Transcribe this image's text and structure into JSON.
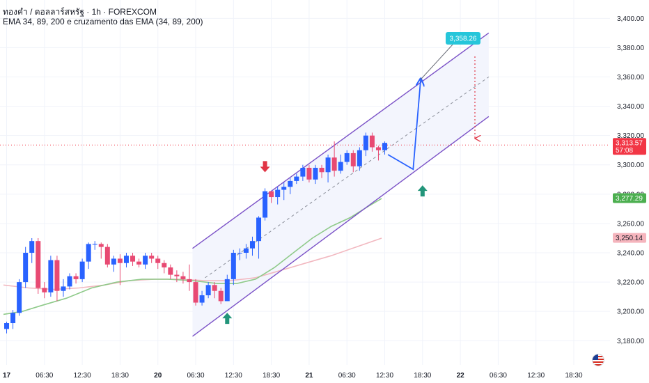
{
  "header": {
    "symbol_line": "ทองคำ / ดอลลาร์สหรัฐ · 1h · FOREXCOM",
    "indicator_line": "EMA 34, 89, 200 e cruzamento das EMA (34, 89, 200)"
  },
  "price_tags": {
    "current": "3,313.57",
    "countdown": "57:08",
    "ema_fast": "3,277.29",
    "ema_slow": "3,250.14",
    "target": "3,358.26"
  },
  "colors": {
    "up": "#2962ff",
    "down": "#e84a73",
    "channel": "#7b52c7",
    "ema_fast": "#8fca8a",
    "ema_slow": "#f2b8c0",
    "projection": "#2962ff",
    "target_box": "#26c6da",
    "down_arrow": "#e03545",
    "up_arrow": "#22957a",
    "ema_fast_tag": "#4caf50",
    "ema_slow_tag": "#f5b5bd"
  },
  "chart_data": {
    "type": "candlestick",
    "ylim": [
      3173,
      3403
    ],
    "y_ticks": [
      3180,
      3200,
      3220,
      3240,
      3260,
      3280,
      3300,
      3320,
      3340,
      3360,
      3380,
      3400
    ],
    "y_tick_labels": [
      "3,180.00",
      "3,200.00",
      "3,220.00",
      "3,240.00",
      "3,260.00",
      "3,280.00",
      "3,300.00",
      "3,320.00",
      "3,340.00",
      "3,360.00",
      "3,380.00",
      "3,400.00"
    ],
    "x_ticks": [
      {
        "label": "17",
        "bar": 0.5,
        "day": true
      },
      {
        "label": "06:30",
        "bar": 6.5,
        "day": false
      },
      {
        "label": "12:30",
        "bar": 12.5,
        "day": false
      },
      {
        "label": "18:30",
        "bar": 18.5,
        "day": false
      },
      {
        "label": "20",
        "bar": 24.5,
        "day": true
      },
      {
        "label": "06:30",
        "bar": 30.5,
        "day": false
      },
      {
        "label": "12:30",
        "bar": 36.5,
        "day": false
      },
      {
        "label": "18:30",
        "bar": 42.5,
        "day": false
      },
      {
        "label": "21",
        "bar": 48.5,
        "day": true
      },
      {
        "label": "06:30",
        "bar": 54.5,
        "day": false
      },
      {
        "label": "12:30",
        "bar": 60.5,
        "day": false
      },
      {
        "label": "18:30",
        "bar": 66.5,
        "day": false
      },
      {
        "label": "22",
        "bar": 72.5,
        "day": true
      },
      {
        "label": "06:30",
        "bar": 78.5,
        "day": false
      },
      {
        "label": "12:30",
        "bar": 84.5,
        "day": false
      },
      {
        "label": "18:30",
        "bar": 90.5,
        "day": false
      }
    ],
    "candles": [
      [
        3188,
        3192,
        3185,
        3193
      ],
      [
        3192,
        3199,
        3188,
        3201
      ],
      [
        3199,
        3220,
        3197,
        3222
      ],
      [
        3220,
        3240,
        3216,
        3244
      ],
      [
        3240,
        3248,
        3233,
        3250
      ],
      [
        3248,
        3216,
        3212,
        3250
      ],
      [
        3216,
        3213,
        3209,
        3220
      ],
      [
        3213,
        3235,
        3210,
        3238
      ],
      [
        3235,
        3214,
        3207,
        3238
      ],
      [
        3214,
        3217,
        3210,
        3222
      ],
      [
        3217,
        3224,
        3215,
        3226
      ],
      [
        3224,
        3222,
        3219,
        3226
      ],
      [
        3222,
        3234,
        3220,
        3236
      ],
      [
        3234,
        3246,
        3229,
        3247
      ],
      [
        3246,
        3246,
        3242,
        3248
      ],
      [
        3246,
        3244,
        3236,
        3247
      ],
      [
        3244,
        3232,
        3230,
        3246
      ],
      [
        3232,
        3236,
        3227,
        3238
      ],
      [
        3236,
        3233,
        3218,
        3239
      ],
      [
        3233,
        3238,
        3230,
        3240
      ],
      [
        3238,
        3234,
        3231,
        3240
      ],
      [
        3234,
        3232,
        3230,
        3236
      ],
      [
        3232,
        3238,
        3229,
        3240
      ],
      [
        3238,
        3236,
        3233,
        3240
      ],
      [
        3236,
        3233,
        3229,
        3238
      ],
      [
        3233,
        3230,
        3226,
        3235
      ],
      [
        3230,
        3225,
        3222,
        3232
      ],
      [
        3225,
        3224,
        3220,
        3228
      ],
      [
        3224,
        3222,
        3219,
        3227
      ],
      [
        3222,
        3220,
        3214,
        3232
      ],
      [
        3220,
        3206,
        3204,
        3222
      ],
      [
        3206,
        3211,
        3204,
        3214
      ],
      [
        3211,
        3218,
        3209,
        3220
      ],
      [
        3218,
        3214,
        3209,
        3220
      ],
      [
        3214,
        3207,
        3205,
        3216
      ],
      [
        3207,
        3222,
        3207,
        3225
      ],
      [
        3222,
        3240,
        3218,
        3242
      ],
      [
        3240,
        3240,
        3235,
        3243
      ],
      [
        3240,
        3243,
        3236,
        3246
      ],
      [
        3243,
        3248,
        3238,
        3251
      ],
      [
        3248,
        3264,
        3236,
        3265
      ],
      [
        3264,
        3282,
        3262,
        3284
      ],
      [
        3282,
        3278,
        3274,
        3281
      ],
      [
        3278,
        3283,
        3273,
        3285
      ],
      [
        3283,
        3285,
        3276,
        3288
      ],
      [
        3285,
        3289,
        3280,
        3291
      ],
      [
        3289,
        3292,
        3287,
        3294
      ],
      [
        3292,
        3298,
        3289,
        3300
      ],
      [
        3298,
        3290,
        3288,
        3300
      ],
      [
        3290,
        3298,
        3287,
        3300
      ],
      [
        3298,
        3295,
        3291,
        3300
      ],
      [
        3295,
        3305,
        3288,
        3307
      ],
      [
        3305,
        3296,
        3292,
        3316
      ],
      [
        3296,
        3302,
        3294,
        3307
      ],
      [
        3302,
        3308,
        3300,
        3310
      ],
      [
        3308,
        3299,
        3295,
        3310
      ],
      [
        3299,
        3310,
        3296,
        3312
      ],
      [
        3310,
        3320,
        3306,
        3322
      ],
      [
        3320,
        3312,
        3309,
        3322
      ],
      [
        3312,
        3310,
        3303,
        3313
      ],
      [
        3310,
        3315,
        3307,
        3316
      ]
    ],
    "ema_fast": [
      [
        0,
        3198
      ],
      [
        3,
        3200
      ],
      [
        6,
        3204
      ],
      [
        10,
        3209
      ],
      [
        14,
        3216
      ],
      [
        18,
        3220
      ],
      [
        22,
        3222
      ],
      [
        26,
        3222
      ],
      [
        30,
        3221
      ],
      [
        34,
        3219
      ],
      [
        37,
        3219
      ],
      [
        40,
        3222
      ],
      [
        43,
        3230
      ],
      [
        46,
        3240
      ],
      [
        49,
        3250
      ],
      [
        52,
        3258
      ],
      [
        55,
        3264
      ],
      [
        58,
        3272
      ],
      [
        60,
        3277
      ]
    ],
    "ema_slow": [
      [
        0,
        3218
      ],
      [
        4,
        3216
      ],
      [
        8,
        3215
      ],
      [
        12,
        3216
      ],
      [
        16,
        3218
      ],
      [
        20,
        3221
      ],
      [
        24,
        3222
      ],
      [
        28,
        3222
      ],
      [
        32,
        3221
      ],
      [
        36,
        3221
      ],
      [
        40,
        3223
      ],
      [
        44,
        3228
      ],
      [
        48,
        3233
      ],
      [
        52,
        3238
      ],
      [
        56,
        3244
      ],
      [
        60,
        3250
      ]
    ],
    "channel": {
      "upper": [
        [
          30,
          3243
        ],
        [
          77,
          3390
        ]
      ],
      "lower": [
        [
          30,
          3183
        ],
        [
          77,
          3333
        ]
      ],
      "mid": [
        [
          32,
          3223
        ],
        [
          77,
          3360
        ]
      ]
    },
    "projection": [
      [
        61,
        3307
      ],
      [
        65,
        3297
      ],
      [
        66.2,
        3358.26
      ]
    ],
    "target_price": 3358.26,
    "current_price": 3313.57,
    "arrows": [
      {
        "dir": "down",
        "bar": 41,
        "price": 3294
      },
      {
        "dir": "up",
        "bar": 35,
        "price": 3200
      },
      {
        "dir": "up",
        "bar": 66,
        "price": 3287
      }
    ]
  }
}
